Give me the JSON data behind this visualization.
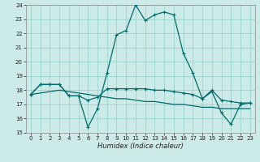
{
  "xlabel": "Humidex (Indice chaleur)",
  "bg_color": "#cceae7",
  "grid_color": "#99d5d0",
  "line_color": "#006b6b",
  "xlim": [
    -0.5,
    23.5
  ],
  "ylim": [
    15,
    24
  ],
  "yticks": [
    15,
    16,
    17,
    18,
    19,
    20,
    21,
    22,
    23,
    24
  ],
  "xticks": [
    0,
    1,
    2,
    3,
    4,
    5,
    6,
    7,
    8,
    9,
    10,
    11,
    12,
    13,
    14,
    15,
    16,
    17,
    18,
    19,
    20,
    21,
    22,
    23
  ],
  "series1_x": [
    0,
    1,
    2,
    3,
    4,
    5,
    6,
    7,
    8,
    9,
    10,
    11,
    12,
    13,
    14,
    15,
    16,
    17,
    18,
    19,
    20,
    21,
    22,
    23
  ],
  "series1_y": [
    17.7,
    18.4,
    18.4,
    18.4,
    17.6,
    17.6,
    15.4,
    16.7,
    19.2,
    21.9,
    22.2,
    24.0,
    22.9,
    23.3,
    23.5,
    23.3,
    20.6,
    19.2,
    17.4,
    17.9,
    16.4,
    15.6,
    17.0,
    17.1
  ],
  "series2_x": [
    0,
    1,
    2,
    3,
    4,
    5,
    6,
    7,
    8,
    9,
    10,
    11,
    12,
    13,
    14,
    15,
    16,
    17,
    18,
    19,
    20,
    21,
    22,
    23
  ],
  "series2_y": [
    17.7,
    18.4,
    18.4,
    18.4,
    17.6,
    17.6,
    17.3,
    17.5,
    18.1,
    18.1,
    18.1,
    18.1,
    18.1,
    18.0,
    18.0,
    17.9,
    17.8,
    17.7,
    17.4,
    18.0,
    17.3,
    17.2,
    17.1,
    17.1
  ],
  "series3_x": [
    0,
    1,
    2,
    3,
    4,
    5,
    6,
    7,
    8,
    9,
    10,
    11,
    12,
    13,
    14,
    15,
    16,
    17,
    18,
    19,
    20,
    21,
    22,
    23
  ],
  "series3_y": [
    17.7,
    17.8,
    17.9,
    18.0,
    17.9,
    17.8,
    17.7,
    17.6,
    17.5,
    17.4,
    17.4,
    17.3,
    17.2,
    17.2,
    17.1,
    17.0,
    17.0,
    16.9,
    16.8,
    16.8,
    16.7,
    16.7,
    16.7,
    16.7
  ]
}
